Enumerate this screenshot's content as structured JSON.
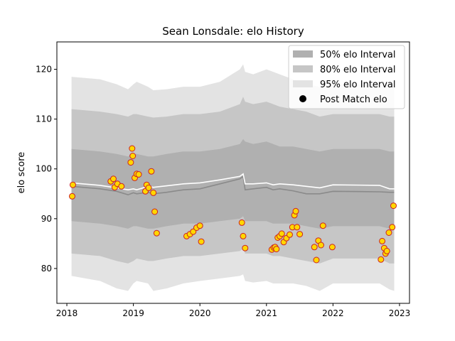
{
  "chart_data": {
    "type": "line",
    "title": "Sean Lonsdale: elo History",
    "xlabel": "",
    "ylabel": "elo score",
    "xlim": [
      2017.85,
      2023.15
    ],
    "ylim": [
      73,
      125.5
    ],
    "xticks": [
      2018,
      2019,
      2020,
      2021,
      2022,
      2023
    ],
    "yticks": [
      80,
      90,
      100,
      110,
      120
    ],
    "grid": false,
    "legend_position": "top-right",
    "legend": [
      {
        "label": "50% elo Interval",
        "color": "#b0b0b0",
        "kind": "patch"
      },
      {
        "label": "80% elo Interval",
        "color": "#c6c6c6",
        "kind": "patch"
      },
      {
        "label": "95% elo Interval",
        "color": "#e3e3e3",
        "kind": "patch"
      },
      {
        "label": "Post Match elo",
        "color": "#000000",
        "kind": "marker"
      }
    ],
    "colors": {
      "band50": "#b0b0b0",
      "band80": "#c6c6c6",
      "band95": "#e3e3e3",
      "median_line": "#8a8a8a",
      "mean_line": "#ffffff",
      "point_fill": "#ffd700",
      "point_edge": "#cc2222"
    },
    "bands": {
      "x": [
        2018.07,
        2018.5,
        2018.75,
        2018.92,
        2019.0,
        2019.05,
        2019.22,
        2019.3,
        2019.5,
        2019.75,
        2020.0,
        2020.3,
        2020.6,
        2020.65,
        2020.68,
        2020.8,
        2021.0,
        2021.1,
        2021.2,
        2021.4,
        2021.6,
        2021.8,
        2022.0,
        2022.7,
        2022.85,
        2022.92
      ],
      "lo95": [
        78.5,
        77.5,
        76.0,
        75.5,
        77.0,
        77.5,
        77.0,
        75.5,
        76.0,
        77.0,
        77.5,
        78.0,
        78.5,
        78.8,
        77.5,
        77.2,
        77.5,
        77.0,
        77.0,
        77.0,
        76.5,
        75.5,
        77.0,
        77.0,
        75.8,
        75.5
      ],
      "hi95": [
        118.5,
        118.0,
        117.0,
        116.0,
        117.0,
        117.5,
        116.5,
        115.8,
        116.0,
        116.5,
        116.5,
        117.5,
        120.0,
        121.0,
        119.5,
        119.0,
        120.0,
        119.5,
        119.0,
        118.0,
        117.0,
        116.5,
        117.0,
        117.0,
        116.5,
        116.5
      ],
      "lo80": [
        83.0,
        82.5,
        81.5,
        81.0,
        81.5,
        82.0,
        81.5,
        81.5,
        82.0,
        82.5,
        82.5,
        83.0,
        83.5,
        84.0,
        83.0,
        83.0,
        83.0,
        82.5,
        82.5,
        82.0,
        81.5,
        81.0,
        82.0,
        82.0,
        81.0,
        81.0
      ],
      "hi80": [
        112.0,
        111.5,
        111.0,
        110.5,
        111.0,
        111.0,
        110.5,
        110.3,
        110.5,
        111.0,
        111.0,
        111.5,
        113.0,
        114.5,
        113.5,
        113.0,
        113.5,
        113.0,
        112.5,
        112.0,
        111.5,
        110.5,
        111.0,
        111.0,
        110.5,
        110.5
      ],
      "lo50": [
        89.5,
        89.0,
        88.5,
        88.0,
        88.5,
        88.5,
        88.0,
        88.0,
        88.5,
        89.0,
        89.0,
        89.5,
        90.0,
        90.5,
        89.5,
        89.5,
        89.5,
        89.0,
        89.0,
        89.0,
        88.5,
        88.0,
        88.5,
        88.5,
        88.0,
        88.0
      ],
      "hi50": [
        104.0,
        103.5,
        103.0,
        102.5,
        103.0,
        103.0,
        102.5,
        102.5,
        103.0,
        103.5,
        103.5,
        104.0,
        105.0,
        106.0,
        105.5,
        105.0,
        105.5,
        105.0,
        104.5,
        104.5,
        104.0,
        103.5,
        104.0,
        104.0,
        103.5,
        103.5
      ]
    },
    "series": [
      {
        "kind": "median",
        "x": [
          2018.07,
          2018.5,
          2018.75,
          2018.92,
          2019.0,
          2019.05,
          2019.22,
          2019.3,
          2019.5,
          2019.75,
          2020.0,
          2020.3,
          2020.6,
          2020.65,
          2020.68,
          2020.8,
          2021.0,
          2021.1,
          2021.2,
          2021.4,
          2021.6,
          2021.8,
          2022.0,
          2022.7,
          2022.85,
          2022.92
        ],
        "y": [
          96.5,
          96.0,
          95.5,
          94.8,
          95.2,
          95.0,
          95.3,
          95.0,
          95.3,
          95.8,
          96.0,
          97.0,
          98.0,
          98.5,
          95.8,
          96.0,
          96.3,
          95.8,
          96.0,
          95.6,
          95.0,
          95.0,
          95.5,
          95.4,
          95.3,
          95.3
        ]
      },
      {
        "kind": "mean",
        "x": [
          2018.07,
          2018.5,
          2018.75,
          2018.92,
          2019.0,
          2019.05,
          2019.22,
          2019.3,
          2019.5,
          2019.75,
          2020.0,
          2020.3,
          2020.6,
          2020.65,
          2020.68,
          2020.8,
          2021.0,
          2021.1,
          2021.2,
          2021.4,
          2021.6,
          2021.8,
          2022.0,
          2022.7,
          2022.85,
          2022.92
        ],
        "y": [
          97.2,
          96.7,
          96.2,
          95.8,
          96.0,
          95.8,
          96.5,
          96.3,
          96.6,
          97.0,
          97.2,
          97.8,
          98.5,
          99.0,
          97.0,
          97.0,
          97.2,
          96.8,
          97.0,
          96.8,
          96.5,
          96.2,
          96.8,
          96.7,
          96.0,
          96.0
        ]
      }
    ],
    "points": {
      "x": [
        2018.08,
        2018.09,
        2018.66,
        2018.7,
        2018.72,
        2018.76,
        2018.82,
        2018.96,
        2018.98,
        2018.99,
        2019.02,
        2019.05,
        2019.08,
        2019.18,
        2019.2,
        2019.23,
        2019.27,
        2019.3,
        2019.32,
        2019.35,
        2019.8,
        2019.85,
        2019.9,
        2019.95,
        2020.0,
        2020.02,
        2020.63,
        2020.65,
        2020.68,
        2021.08,
        2021.11,
        2021.13,
        2021.15,
        2021.17,
        2021.2,
        2021.23,
        2021.26,
        2021.3,
        2021.35,
        2021.39,
        2021.42,
        2021.44,
        2021.46,
        2021.5,
        2021.72,
        2021.75,
        2021.78,
        2021.82,
        2021.85,
        2021.99,
        2022.72,
        2022.74,
        2022.77,
        2022.79,
        2022.81,
        2022.84,
        2022.89,
        2022.91
      ],
      "y": [
        94.5,
        96.8,
        97.5,
        98.0,
        96.3,
        97.0,
        96.5,
        101.3,
        104.1,
        102.6,
        98.2,
        99.0,
        98.9,
        95.5,
        96.8,
        96.2,
        99.5,
        95.2,
        91.4,
        87.1,
        86.5,
        86.9,
        87.4,
        88.2,
        88.6,
        85.4,
        89.2,
        86.5,
        84.1,
        83.8,
        84.2,
        84.3,
        83.9,
        86.2,
        86.5,
        87.0,
        85.3,
        86.1,
        86.8,
        88.3,
        90.7,
        91.5,
        88.3,
        86.9,
        84.3,
        81.7,
        85.6,
        84.7,
        88.6,
        84.3,
        81.8,
        85.5,
        84.1,
        83.0,
        83.5,
        87.2,
        88.3,
        92.6
      ]
    }
  }
}
